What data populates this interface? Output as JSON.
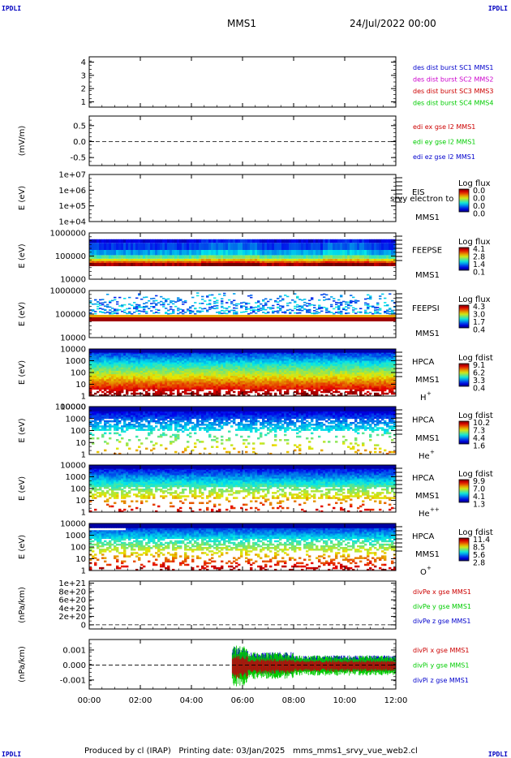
{
  "header": {
    "corner_label": "IPDLI",
    "title": "MMS1",
    "date": "24/Jul/2022 00:00"
  },
  "footer": {
    "produced_by": "Produced by cl (IRAP)",
    "printing_date": "Printing date: 03/Jan/2025",
    "file": "mms_mms1_srvy_vue_web2.cl"
  },
  "colors": {
    "blue": "#0000cc",
    "magenta": "#cc00cc",
    "red": "#cc0000",
    "green": "#00cc00",
    "axis": "#000000"
  },
  "chart_data": [
    {
      "type": "line",
      "id": "des_dist",
      "ylabel": "",
      "ylim": [
        0.6,
        4.4
      ],
      "y_ticks": [
        "1",
        "2",
        "3",
        "4"
      ],
      "y_tick_values": [
        1,
        2,
        3,
        4
      ],
      "series": [
        {
          "name": "des dist burst SC1 MMS1",
          "color": "#0000cc",
          "values": []
        },
        {
          "name": "des dist burst SC2 MMS2",
          "color": "#cc00cc",
          "values": []
        },
        {
          "name": "des dist burst SC3 MMS3",
          "color": "#cc0000",
          "values": []
        },
        {
          "name": "des dist burst SC4 MMS4",
          "color": "#00cc00",
          "values": []
        }
      ]
    },
    {
      "type": "line",
      "id": "edi",
      "ylabel": "(mV/m)",
      "ylim": [
        -0.75,
        0.8
      ],
      "y_ticks": [
        "0.5",
        "0.0",
        "-0.5"
      ],
      "y_tick_values": [
        0.5,
        0.0,
        -0.5
      ],
      "zero_line": true,
      "series": [
        {
          "name": "edi ex gse l2 MMS1",
          "color": "#cc0000",
          "values": []
        },
        {
          "name": "edi ey gse l2 MMS1",
          "color": "#00cc00",
          "values": []
        },
        {
          "name": "edi ez gse l2 MMS1",
          "color": "#0000cc",
          "values": []
        }
      ]
    },
    {
      "type": "heatmap",
      "id": "eis",
      "ylabel": "E (eV)",
      "log_y": true,
      "ylim": [
        10000,
        10000000
      ],
      "y_ticks": [
        "1e+07",
        "1e+06",
        "1e+05",
        "1e+04"
      ],
      "y_tick_values": [
        10000000,
        1000000,
        100000,
        10000
      ],
      "labels": [
        "EIS",
        "MMS1"
      ],
      "overlay_text": "srvy electron to",
      "colorbar": {
        "title": "Log flux",
        "ticks": [
          "0.0",
          "0.0",
          "0.0",
          "0.0"
        ]
      },
      "fill": "empty"
    },
    {
      "type": "heatmap",
      "id": "feeps_e",
      "ylabel": "E (eV)",
      "log_y": true,
      "ylim": [
        10000,
        1000000
      ],
      "y_ticks": [
        "1000000",
        "100000",
        "10000"
      ],
      "y_tick_values": [
        1000000,
        100000,
        10000
      ],
      "labels": [
        "FEEPSE",
        "MMS1"
      ],
      "colorbar": {
        "title": "Log flux",
        "ticks": [
          "4.1",
          "2.8",
          "1.4",
          "0.1"
        ]
      },
      "fill": "feepse"
    },
    {
      "type": "heatmap",
      "id": "feeps_i",
      "ylabel": "E (eV)",
      "log_y": true,
      "ylim": [
        10000,
        1000000
      ],
      "y_ticks": [
        "1000000",
        "100000",
        "10000"
      ],
      "y_tick_values": [
        1000000,
        100000,
        10000
      ],
      "labels": [
        "FEEPSI",
        "MMS1"
      ],
      "colorbar": {
        "title": "Log flux",
        "ticks": [
          "4.3",
          "3.0",
          "1.7",
          "0.4"
        ]
      },
      "fill": "feepsi"
    },
    {
      "type": "heatmap",
      "id": "hpca_h",
      "ylabel": "E (eV)",
      "log_y": true,
      "ylim": [
        1,
        10000
      ],
      "y_ticks": [
        "10000",
        "1000",
        "100",
        "10",
        "1"
      ],
      "y_tick_values": [
        10000,
        1000,
        100,
        10,
        1
      ],
      "labels": [
        "HPCA",
        "MMS1"
      ],
      "species": "H",
      "species_sup": "+",
      "colorbar": {
        "title": "Log fdist",
        "ticks": [
          "9.1",
          "6.2",
          "3.3",
          "0.4"
        ]
      },
      "fill": "hplus"
    },
    {
      "type": "heatmap",
      "id": "hpca_he",
      "ylabel": "E (eV)",
      "log_y": true,
      "ylim": [
        1,
        10000
      ],
      "y_ticks": [
        "100000",
        "10000",
        "1000",
        "100",
        "10",
        "1"
      ],
      "y_tick_values": [
        100000,
        10000,
        1000,
        100,
        10,
        1
      ],
      "labels": [
        "HPCA",
        "MMS1"
      ],
      "species": "He",
      "species_sup": "+",
      "colorbar": {
        "title": "Log fdist",
        "ticks": [
          "10.2",
          "7.3",
          "4.4",
          "1.6"
        ]
      },
      "fill": "heplus"
    },
    {
      "type": "heatmap",
      "id": "hpca_hepp",
      "ylabel": "E (eV)",
      "log_y": true,
      "ylim": [
        1,
        10000
      ],
      "y_ticks": [
        "10000",
        "1000",
        "100",
        "10",
        "1"
      ],
      "y_tick_values": [
        10000,
        1000,
        100,
        10,
        1
      ],
      "labels": [
        "HPCA",
        "MMS1"
      ],
      "species": "He",
      "species_sup": "++",
      "colorbar": {
        "title": "Log fdist",
        "ticks": [
          "9.9",
          "7.0",
          "4.1",
          "1.3"
        ]
      },
      "fill": "heplusplus"
    },
    {
      "type": "heatmap",
      "id": "hpca_o",
      "ylabel": "E (eV)",
      "log_y": true,
      "ylim": [
        1,
        10000
      ],
      "y_ticks": [
        "10000",
        "1000",
        "100",
        "10",
        "1"
      ],
      "y_tick_values": [
        10000,
        1000,
        100,
        10,
        1
      ],
      "labels": [
        "HPCA",
        "MMS1"
      ],
      "species": "O",
      "species_sup": "+",
      "colorbar": {
        "title": "Log fdist",
        "ticks": [
          "11.4",
          "8.5",
          "5.6",
          "2.8"
        ]
      },
      "fill": "oplus"
    },
    {
      "type": "line",
      "id": "divpe",
      "ylabel": "(nPa/km)",
      "ylim": [
        -1e+20,
        1.05e+21
      ],
      "y_ticks": [
        "1e+21",
        "8e+20",
        "6e+20",
        "4e+20",
        "2e+20",
        "0"
      ],
      "y_tick_values": [
        1e+21,
        8e+20,
        6e+20,
        4e+20,
        2e+20,
        0
      ],
      "zero_line": true,
      "series": [
        {
          "name": "divPe x gse MMS1",
          "color": "#cc0000",
          "values": []
        },
        {
          "name": "divPe y gse MMS1",
          "color": "#00cc00",
          "values": []
        },
        {
          "name": "divPe z gse MMS1",
          "color": "#0000cc",
          "values": []
        }
      ]
    },
    {
      "type": "line",
      "id": "divpi",
      "ylabel": "(nPa/km)",
      "ylim": [
        -0.0016,
        0.0017
      ],
      "y_ticks": [
        "0.001",
        "0.000",
        "-0.001"
      ],
      "y_tick_values": [
        0.001,
        0.0,
        -0.001
      ],
      "zero_line": true,
      "data_start_hour": 5.6,
      "amplitude": 0.0006,
      "series": [
        {
          "name": "divPi x gse MMS1",
          "color": "#cc0000",
          "values": []
        },
        {
          "name": "divPi y gse MMS1",
          "color": "#00cc00",
          "values": []
        },
        {
          "name": "divPi z gse MMS1",
          "color": "#0000cc",
          "values": []
        }
      ]
    }
  ],
  "x_axis": {
    "xlim": [
      0,
      12
    ],
    "ticks": [
      "00:00",
      "02:00",
      "04:00",
      "06:00",
      "08:00",
      "10:00",
      "12:00"
    ],
    "tick_values": [
      0,
      2,
      4,
      6,
      8,
      10,
      12
    ]
  }
}
